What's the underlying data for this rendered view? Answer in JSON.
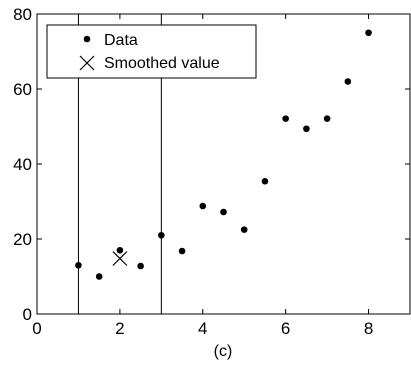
{
  "chart_data": {
    "type": "scatter",
    "xlabel": "(c)",
    "xlim": [
      0,
      9
    ],
    "ylim": [
      0,
      80
    ],
    "xticks": [
      0,
      2,
      4,
      6,
      8
    ],
    "yticks": [
      0,
      20,
      40,
      60,
      80
    ],
    "grid": false,
    "legend": {
      "placement": "top-left"
    },
    "vertical_lines": [
      1,
      3
    ],
    "series": [
      {
        "name": "Data",
        "marker": "dot",
        "x": [
          1,
          1.5,
          2,
          2.5,
          3,
          3.5,
          4,
          4.5,
          5,
          5.5,
          6,
          6.5,
          7,
          7.5,
          8
        ],
        "y": [
          13,
          10,
          17,
          12.8,
          21,
          16.8,
          28.8,
          27.2,
          22.5,
          35.4,
          52.1,
          49.4,
          52.1,
          62,
          75
        ]
      },
      {
        "name": "Smoothed value",
        "marker": "x",
        "x": [
          2
        ],
        "y": [
          14.8
        ]
      }
    ]
  }
}
